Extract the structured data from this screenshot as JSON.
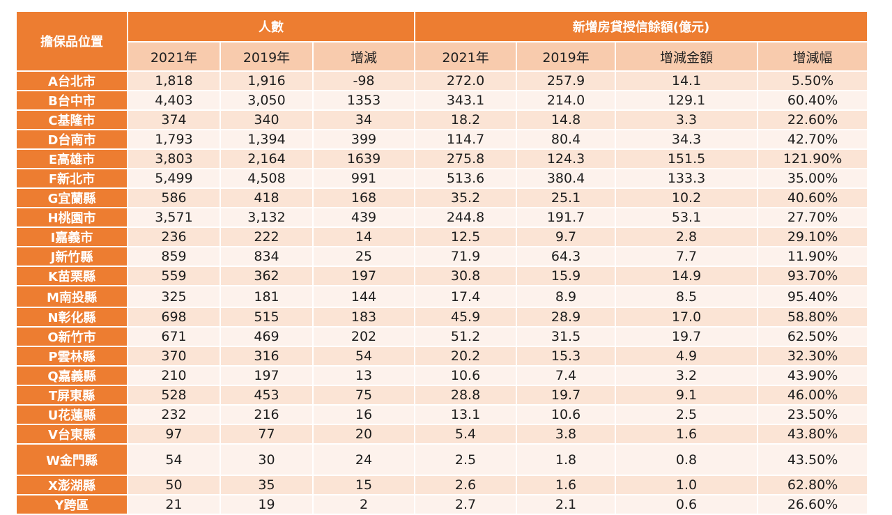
{
  "header": {
    "corner": "擔保品位置",
    "group_people": "人數",
    "group_loans": "新增房貸授信餘額(億元)",
    "sub": [
      "2021年",
      "2019年",
      "增減",
      "2021年",
      "2019年",
      "增減金額",
      "增減幅"
    ]
  },
  "rows": [
    {
      "region": "A台北市",
      "p2021": "1,818",
      "p2019": "1,916",
      "pdiff": "-98",
      "l2021": "272.0",
      "l2019": "257.9",
      "ldiff": "14.1",
      "lpct": "5.50%"
    },
    {
      "region": "B台中市",
      "p2021": "4,403",
      "p2019": "3,050",
      "pdiff": "1353",
      "l2021": "343.1",
      "l2019": "214.0",
      "ldiff": "129.1",
      "lpct": "60.40%"
    },
    {
      "region": "C基隆市",
      "p2021": "374",
      "p2019": "340",
      "pdiff": "34",
      "l2021": "18.2",
      "l2019": "14.8",
      "ldiff": "3.3",
      "lpct": "22.60%"
    },
    {
      "region": "D台南市",
      "p2021": "1,793",
      "p2019": "1,394",
      "pdiff": "399",
      "l2021": "114.7",
      "l2019": "80.4",
      "ldiff": "34.3",
      "lpct": "42.70%"
    },
    {
      "region": "E高雄市",
      "p2021": "3,803",
      "p2019": "2,164",
      "pdiff": "1639",
      "l2021": "275.8",
      "l2019": "124.3",
      "ldiff": "151.5",
      "lpct": "121.90%"
    },
    {
      "region": "F新北市",
      "p2021": "5,499",
      "p2019": "4,508",
      "pdiff": "991",
      "l2021": "513.6",
      "l2019": "380.4",
      "ldiff": "133.3",
      "lpct": "35.00%"
    },
    {
      "region": "G宜蘭縣",
      "p2021": "586",
      "p2019": "418",
      "pdiff": "168",
      "l2021": "35.2",
      "l2019": "25.1",
      "ldiff": "10.2",
      "lpct": "40.60%"
    },
    {
      "region": "H桃園市",
      "p2021": "3,571",
      "p2019": "3,132",
      "pdiff": "439",
      "l2021": "244.8",
      "l2019": "191.7",
      "ldiff": "53.1",
      "lpct": "27.70%"
    },
    {
      "region": "I嘉義市",
      "p2021": "236",
      "p2019": "222",
      "pdiff": "14",
      "l2021": "12.5",
      "l2019": "9.7",
      "ldiff": "2.8",
      "lpct": "29.10%"
    },
    {
      "region": "J新竹縣",
      "p2021": "859",
      "p2019": "834",
      "pdiff": "25",
      "l2021": "71.9",
      "l2019": "64.3",
      "ldiff": "7.7",
      "lpct": "11.90%"
    },
    {
      "region": "K苗栗縣",
      "p2021": "559",
      "p2019": "362",
      "pdiff": "197",
      "l2021": "30.8",
      "l2019": "15.9",
      "ldiff": "14.9",
      "lpct": "93.70%"
    },
    {
      "region": "M南投縣",
      "p2021": "325",
      "p2019": "181",
      "pdiff": "144",
      "l2021": "17.4",
      "l2019": "8.9",
      "ldiff": "8.5",
      "lpct": "95.40%"
    },
    {
      "region": "N彰化縣",
      "p2021": "698",
      "p2019": "515",
      "pdiff": "183",
      "l2021": "45.9",
      "l2019": "28.9",
      "ldiff": "17.0",
      "lpct": "58.80%"
    },
    {
      "region": "O新竹市",
      "p2021": "671",
      "p2019": "469",
      "pdiff": "202",
      "l2021": "51.2",
      "l2019": "31.5",
      "ldiff": "19.7",
      "lpct": "62.50%"
    },
    {
      "region": "P雲林縣",
      "p2021": "370",
      "p2019": "316",
      "pdiff": "54",
      "l2021": "20.2",
      "l2019": "15.3",
      "ldiff": "4.9",
      "lpct": "32.30%"
    },
    {
      "region": "Q嘉義縣",
      "p2021": "210",
      "p2019": "197",
      "pdiff": "13",
      "l2021": "10.6",
      "l2019": "7.4",
      "ldiff": "3.2",
      "lpct": "43.90%"
    },
    {
      "region": "T屏東縣",
      "p2021": "528",
      "p2019": "453",
      "pdiff": "75",
      "l2021": "28.8",
      "l2019": "19.7",
      "ldiff": "9.1",
      "lpct": "46.00%"
    },
    {
      "region": "U花蓮縣",
      "p2021": "232",
      "p2019": "216",
      "pdiff": "16",
      "l2021": "13.1",
      "l2019": "10.6",
      "ldiff": "2.5",
      "lpct": "23.50%"
    },
    {
      "region": "V台東縣",
      "p2021": "97",
      "p2019": "77",
      "pdiff": "20",
      "l2021": "5.4",
      "l2019": "3.8",
      "ldiff": "1.6",
      "lpct": "43.80%"
    },
    {
      "region": "W金門縣",
      "p2021": "54",
      "p2019": "30",
      "pdiff": "24",
      "l2021": "2.5",
      "l2019": "1.8",
      "ldiff": "0.8",
      "lpct": "43.50%"
    },
    {
      "region": "X澎湖縣",
      "p2021": "50",
      "p2019": "35",
      "pdiff": "15",
      "l2021": "2.6",
      "l2019": "1.6",
      "ldiff": "1.0",
      "lpct": "62.80%"
    },
    {
      "region": "Y跨區",
      "p2021": "21",
      "p2019": "19",
      "pdiff": "2",
      "l2021": "2.7",
      "l2019": "2.1",
      "ldiff": "0.6",
      "lpct": "26.60%"
    }
  ]
}
